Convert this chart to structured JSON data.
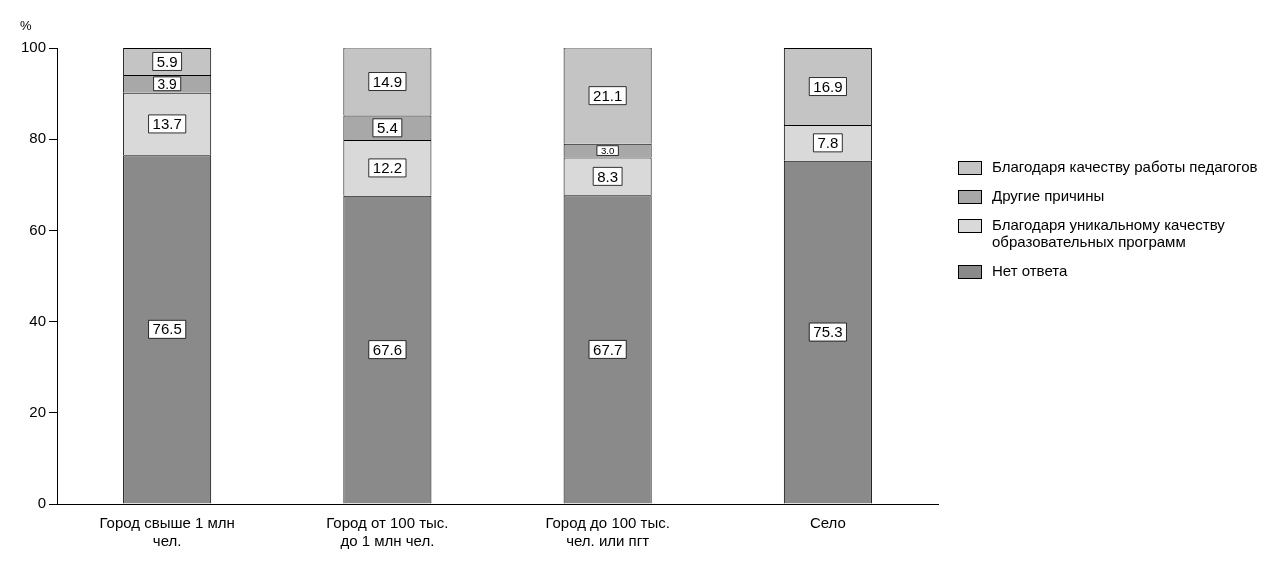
{
  "chart_data": {
    "type": "bar",
    "stacked": true,
    "ylabel": "%",
    "categories": [
      "Город свыше 1 млн чел.",
      "Город от 100 тыс. до 1 млн чел.",
      "Город до 100 тыс. чел. или пгт",
      "Село"
    ],
    "series": [
      {
        "name": "Нет ответа",
        "color": "#8a8a8a",
        "values": [
          76.5,
          67.6,
          67.7,
          75.3
        ],
        "value_labels": [
          "76.5",
          "67.6",
          "67.7",
          "75.3"
        ]
      },
      {
        "name": "Благодаря уникальному качеству образовательных программ",
        "color": "#d9d9d9",
        "values": [
          13.7,
          12.2,
          8.3,
          7.8
        ],
        "value_labels": [
          "13.7",
          "12.2",
          "8.3",
          "7.8"
        ]
      },
      {
        "name": "Другие причины",
        "color": "#a8a8a8",
        "values": [
          3.9,
          5.4,
          3.0,
          null
        ],
        "value_labels": [
          "3.9",
          "5.4",
          "3.0",
          null
        ]
      },
      {
        "name": "Благодаря качеству работы педагогов",
        "color": "#c4c4c4",
        "values": [
          5.9,
          14.9,
          21.1,
          16.9
        ],
        "value_labels": [
          "5.9",
          "14.9",
          "21.1",
          "16.9"
        ]
      }
    ],
    "ylim": [
      0,
      100
    ],
    "yticks": [
      0,
      20,
      40,
      60,
      80,
      100
    ],
    "grid": false,
    "legend": "right"
  }
}
